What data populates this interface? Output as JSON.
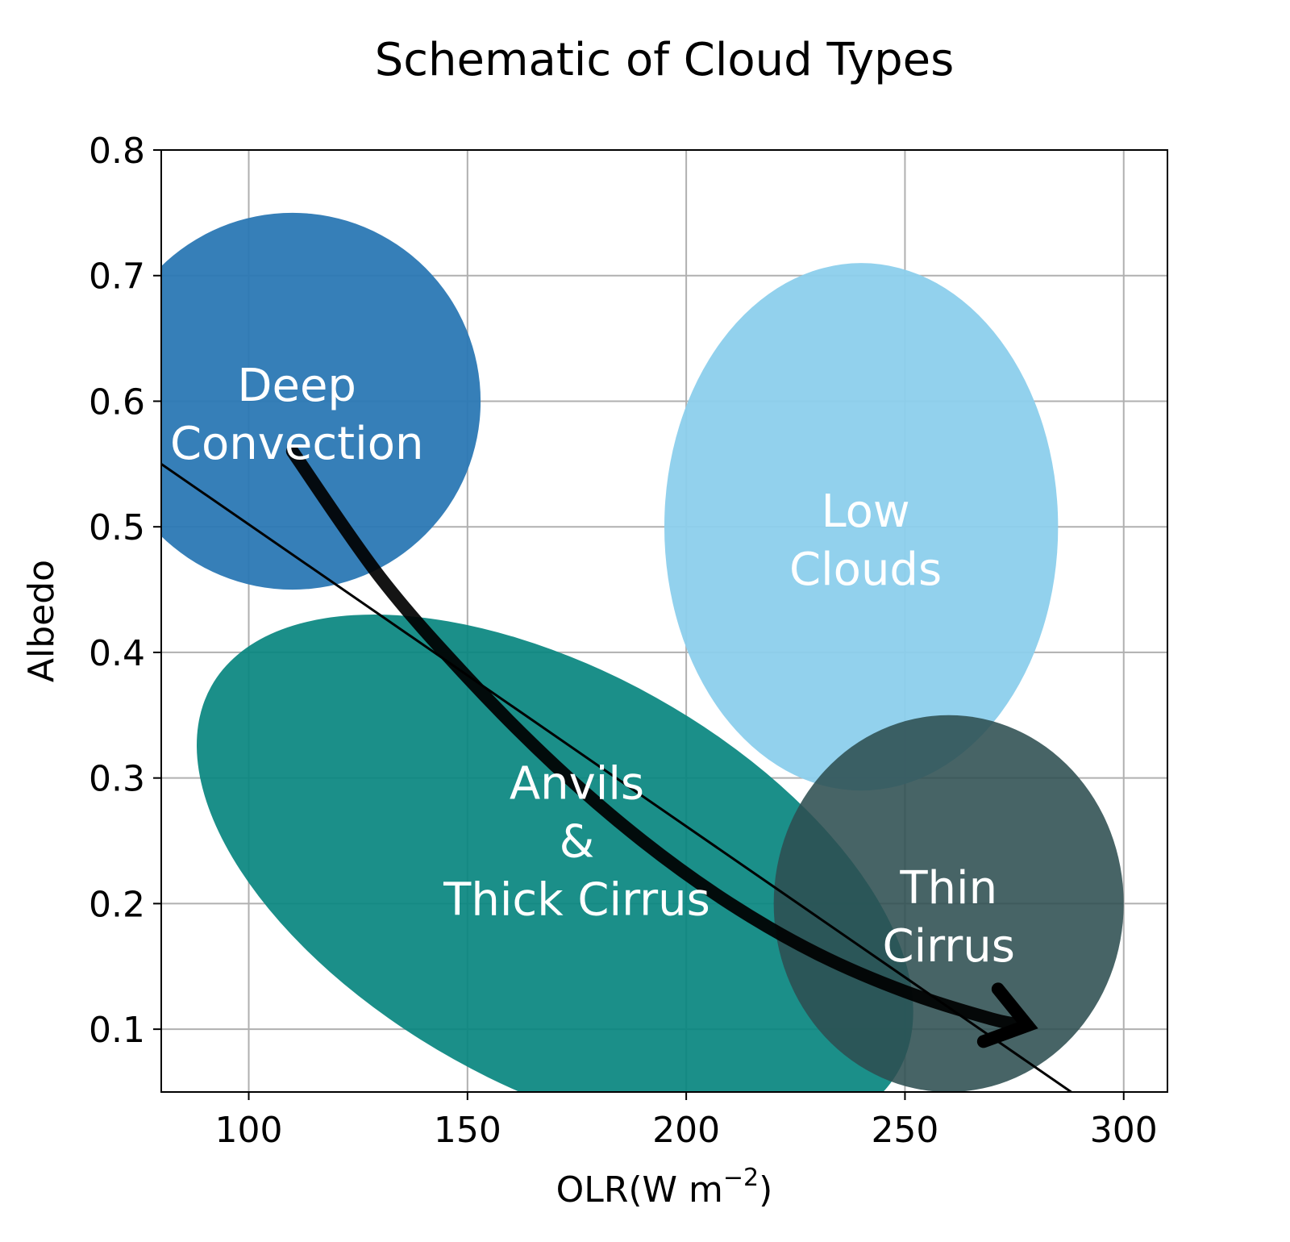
{
  "chart_data": {
    "type": "scatter",
    "title": "Schematic of Cloud Types",
    "xlabel": "OLR(W m",
    "xlabel_exponent": "−2",
    "xlabel_suffix": ")",
    "ylabel": "Albedo",
    "xlim": [
      80,
      310
    ],
    "ylim": [
      0.05,
      0.8
    ],
    "xticks": [
      100,
      150,
      200,
      250,
      300
    ],
    "yticks": [
      0.1,
      0.2,
      0.3,
      0.4,
      0.5,
      0.6,
      0.7,
      0.8
    ],
    "xtick_labels": [
      "100",
      "150",
      "200",
      "250",
      "300"
    ],
    "ytick_labels": [
      "0.1",
      "0.2",
      "0.3",
      "0.4",
      "0.5",
      "0.6",
      "0.7",
      "0.8"
    ],
    "grid": true,
    "regions": [
      {
        "name": "Deep Convection",
        "lines": [
          "Deep",
          "Convection"
        ],
        "center": [
          110,
          0.6
        ],
        "radius_x": 43,
        "radius_y": 0.15,
        "angle_deg": 0,
        "color": "#2b78b4",
        "opacity": 0.95,
        "label_at": [
          111,
          0.59
        ]
      },
      {
        "name": "Low Clouds",
        "lines": [
          "Low",
          "Clouds"
        ],
        "center": [
          240,
          0.5
        ],
        "radius_x": 45,
        "radius_y": 0.21,
        "angle_deg": 0,
        "color": "#8ccfec",
        "opacity": 0.95,
        "label_at": [
          241,
          0.49
        ]
      },
      {
        "name": "Anvils & Thick Cirrus",
        "lines": [
          "Anvils",
          "&",
          "Thick Cirrus"
        ],
        "center": [
          170,
          0.22
        ],
        "radius_x": 90,
        "radius_y": 0.165,
        "angle_deg": 29.2,
        "color": "#08857f",
        "opacity": 0.92,
        "label_at": [
          175,
          0.25
        ]
      },
      {
        "name": "Thin Cirrus",
        "lines": [
          "Thin",
          "Cirrus"
        ],
        "center": [
          260,
          0.2
        ],
        "radius_x": 40,
        "radius_y": 0.15,
        "angle_deg": 0,
        "color": "#2e4f51",
        "opacity": 0.88,
        "label_at": [
          260,
          0.19
        ]
      }
    ],
    "trend_line": {
      "x": [
        80,
        288
      ],
      "y": [
        0.55,
        0.05
      ],
      "color": "#000000"
    },
    "trajectory_arrow": {
      "x": [
        110,
        130,
        150,
        170,
        190,
        210,
        230,
        250,
        270,
        278
      ],
      "y": [
        0.56,
        0.46,
        0.38,
        0.31,
        0.25,
        0.2,
        0.16,
        0.13,
        0.108,
        0.103
      ],
      "color": "#000000"
    }
  }
}
